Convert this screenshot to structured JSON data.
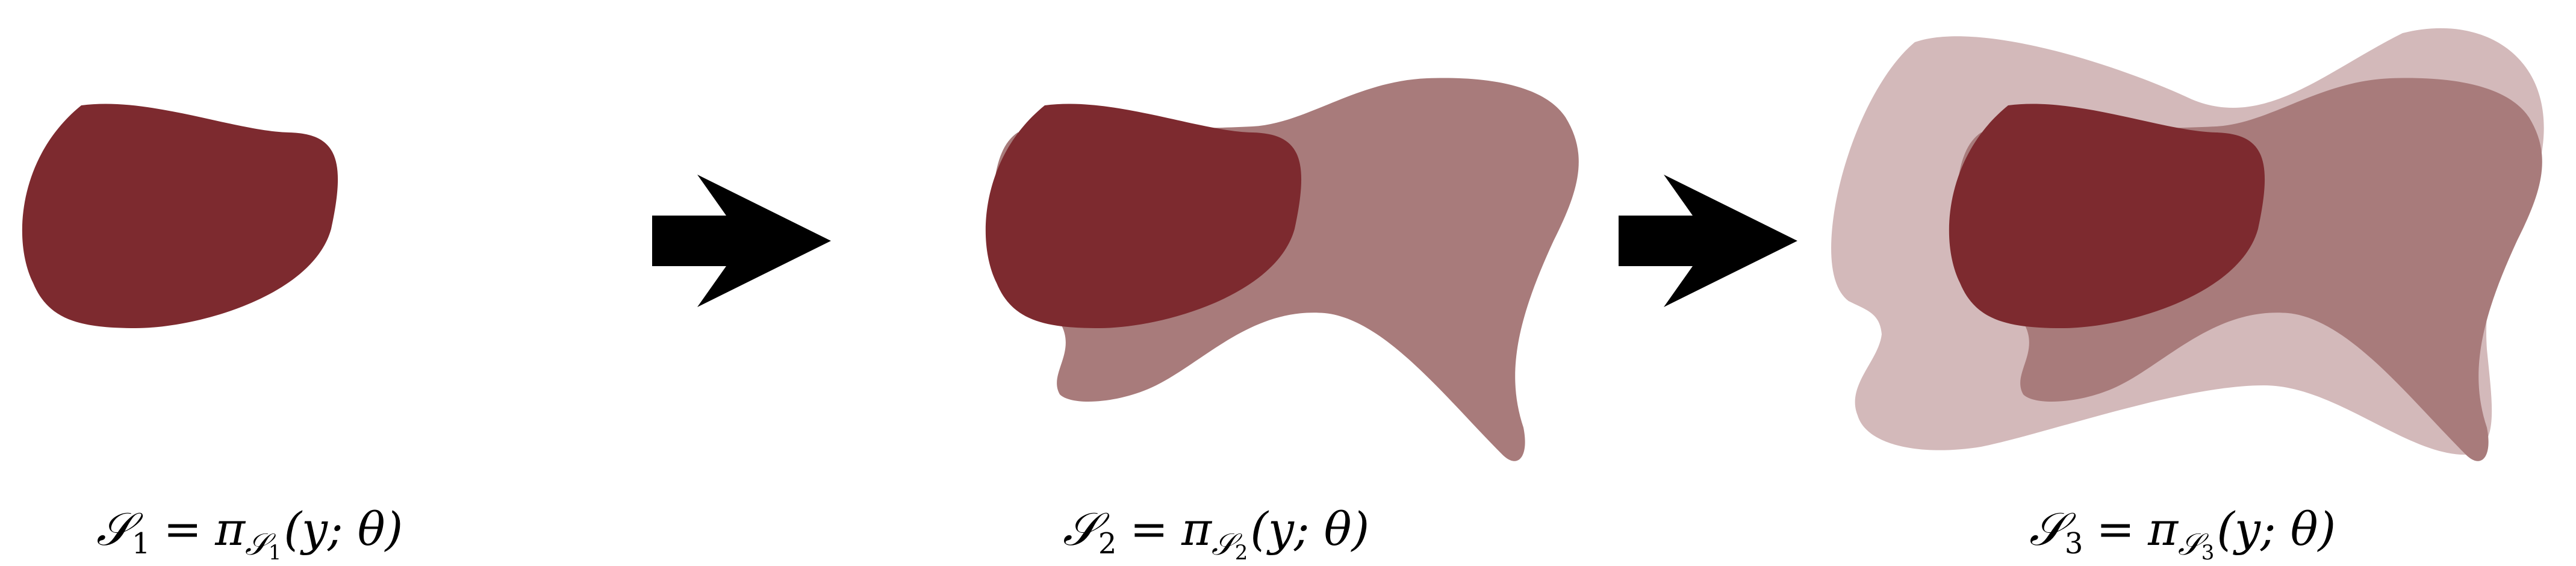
{
  "colors": {
    "region_dark": "#7d2a2f",
    "region_medium": "#a87b7b",
    "region_light": "#d3b9ba",
    "arrow": "#000000",
    "background": "#ffffff"
  },
  "stages": [
    {
      "label": {
        "set_symbol": "𝒮",
        "set_index": "1",
        "equals": "=",
        "pi": "π",
        "sub_set_symbol": "𝒮",
        "sub_index": "1",
        "args": "(y; θ)"
      }
    },
    {
      "label": {
        "set_symbol": "𝒮",
        "set_index": "2",
        "equals": "=",
        "pi": "π",
        "sub_set_symbol": "𝒮",
        "sub_index": "2",
        "args": "(y; θ)"
      }
    },
    {
      "label": {
        "set_symbol": "𝒮",
        "set_index": "3",
        "equals": "=",
        "pi": "π",
        "sub_set_symbol": "𝒮",
        "sub_index": "3",
        "args": "(y; θ)"
      }
    }
  ],
  "arrows": [
    {
      "icon": "right-arrow-icon"
    },
    {
      "icon": "right-arrow-icon"
    }
  ]
}
